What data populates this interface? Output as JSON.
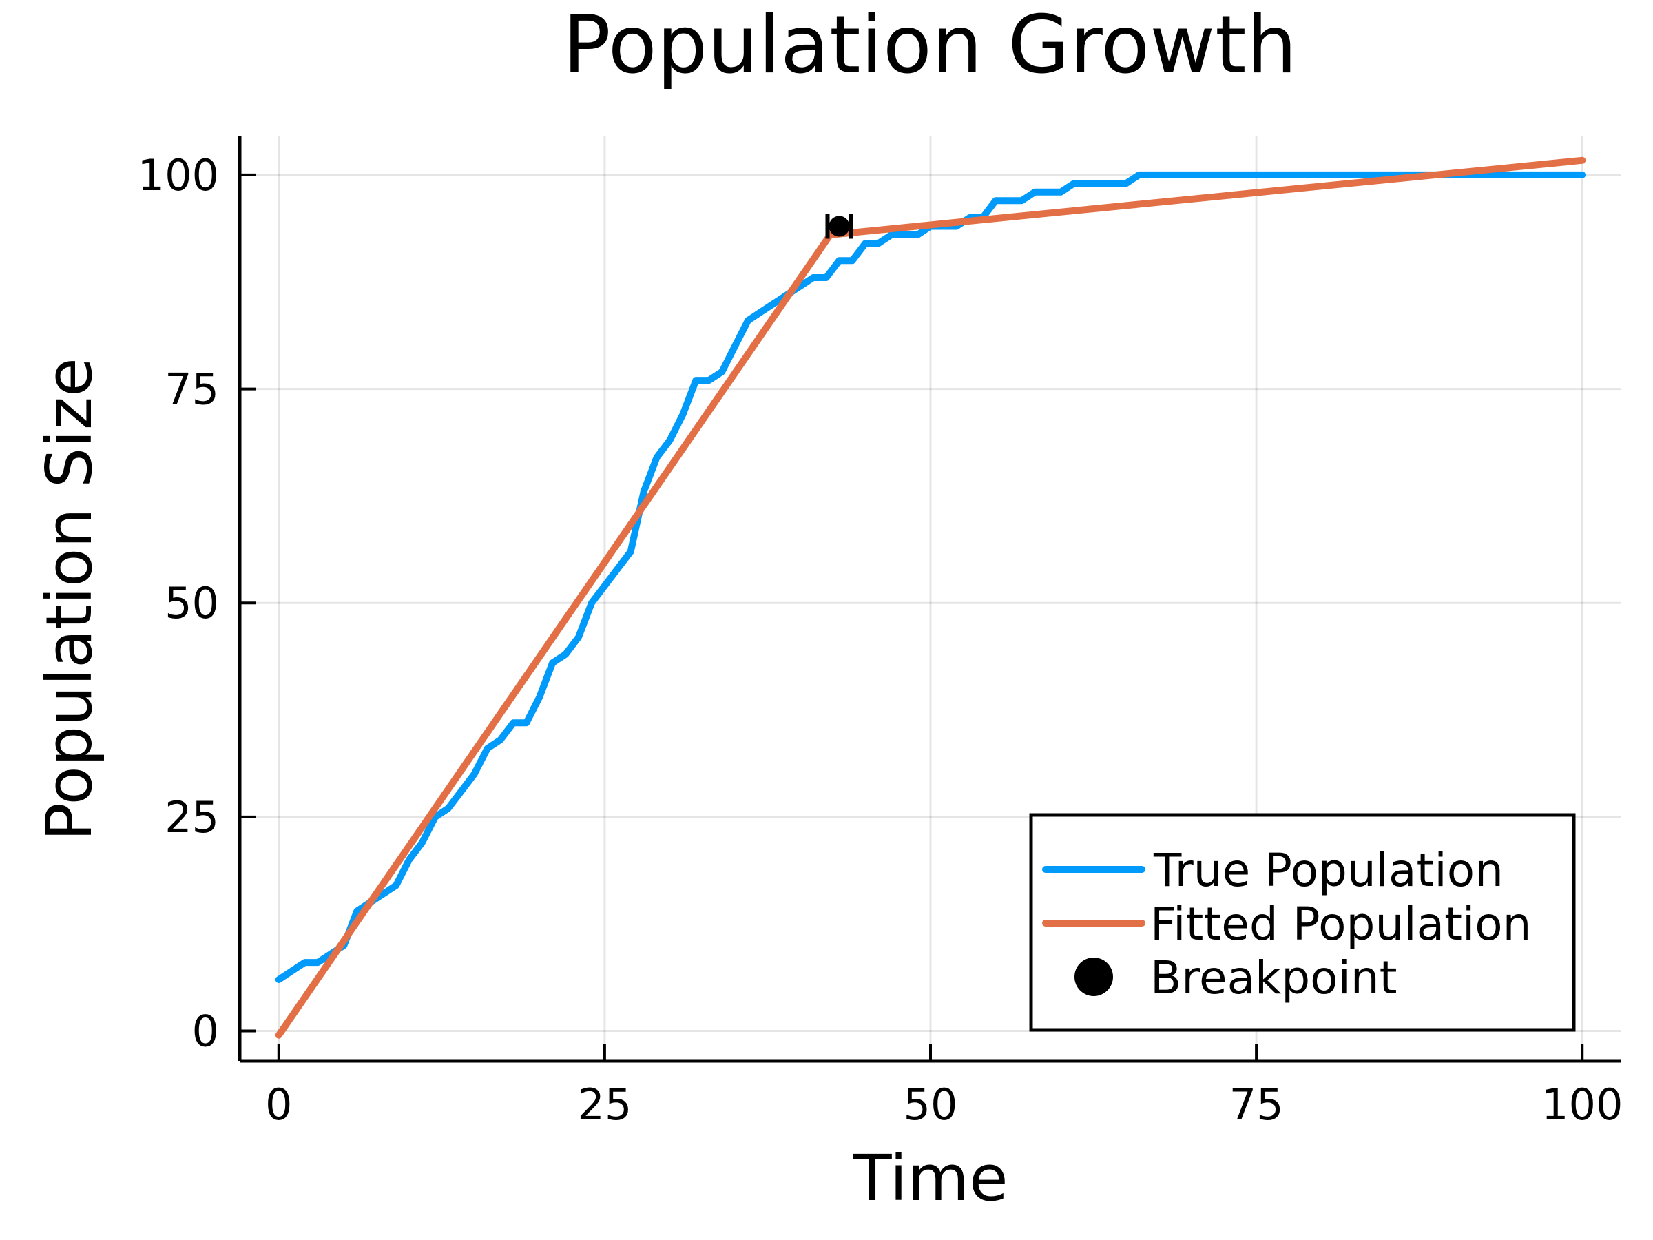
{
  "chart_data": {
    "type": "line",
    "title": "Population Growth",
    "xlabel": "Time",
    "ylabel": "Population Size",
    "xlim": [
      -3,
      103
    ],
    "ylim": [
      -3.5,
      104.5
    ],
    "xticks": [
      0,
      25,
      50,
      75,
      100
    ],
    "yticks": [
      0,
      25,
      50,
      75,
      100
    ],
    "xtick_labels": [
      "0",
      "25",
      "50",
      "75",
      "100"
    ],
    "ytick_labels": [
      "0",
      "25",
      "50",
      "75",
      "100"
    ],
    "grid": true,
    "legend_position": "bottom-right",
    "series": [
      {
        "name": "True Population",
        "kind": "line",
        "color": "#009AFA",
        "x": [
          0,
          1,
          2,
          3,
          4,
          5,
          6,
          7,
          8,
          9,
          10,
          11,
          12,
          13,
          14,
          15,
          16,
          17,
          18,
          19,
          20,
          21,
          22,
          23,
          24,
          25,
          26,
          27,
          28,
          29,
          30,
          31,
          32,
          33,
          34,
          35,
          36,
          37,
          38,
          39,
          40,
          41,
          42,
          43,
          44,
          45,
          46,
          47,
          48,
          49,
          50,
          51,
          52,
          53,
          54,
          55,
          56,
          57,
          58,
          59,
          60,
          61,
          62,
          63,
          64,
          65,
          66,
          67,
          68,
          69,
          70,
          71,
          72,
          73,
          74,
          75,
          76,
          77,
          78,
          79,
          80,
          81,
          82,
          83,
          84,
          85,
          86,
          87,
          88,
          89,
          90,
          91,
          92,
          93,
          94,
          95,
          96,
          97,
          98,
          99,
          100
        ],
        "y": [
          6,
          7,
          8,
          8,
          9,
          10,
          14,
          15,
          16,
          17,
          20,
          22,
          25,
          26,
          28,
          30,
          33,
          34,
          36,
          36,
          39,
          43,
          44,
          46,
          50,
          52,
          54,
          56,
          63,
          67,
          69,
          72,
          76,
          76,
          77,
          80,
          83,
          84,
          85,
          86,
          87,
          88,
          88,
          90,
          90,
          92,
          92,
          93,
          93,
          93,
          94,
          94,
          94,
          95,
          95,
          97,
          97,
          97,
          98,
          98,
          98,
          99,
          99,
          99,
          99,
          99,
          100,
          100,
          100,
          100,
          100,
          100,
          100,
          100,
          100,
          100,
          100,
          100,
          100,
          100,
          100,
          100,
          100,
          100,
          100,
          100,
          100,
          100,
          100,
          100,
          100,
          100,
          100,
          100,
          100,
          100,
          100,
          100,
          100,
          100,
          100
        ]
      },
      {
        "name": "Fitted Population",
        "kind": "line",
        "color": "#E26F46",
        "x": [
          0,
          42.3,
          100
        ],
        "y": [
          -0.5,
          93,
          101.7
        ]
      },
      {
        "name": "Breakpoint",
        "kind": "scatter",
        "color": "#000000",
        "x": [
          43
        ],
        "y": [
          94
        ],
        "x_error": [
          0.9
        ]
      }
    ]
  }
}
